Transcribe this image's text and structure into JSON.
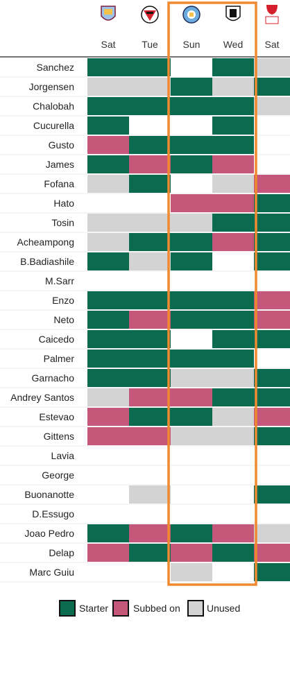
{
  "chart_data": {
    "type": "heatmap",
    "fixtures": [
      {
        "day": "Sat",
        "opponent_icon": "aston-villa-crest-icon"
      },
      {
        "day": "Tue",
        "opponent_icon": "bournemouth-crest-icon"
      },
      {
        "day": "Sun",
        "opponent_icon": "manchester-city-crest-icon"
      },
      {
        "day": "Wed",
        "opponent_icon": "fulham-crest-icon"
      },
      {
        "day": "Sat",
        "opponent_icon": "fa-cup-logo-icon"
      }
    ],
    "highlighted_fixtures": [
      2,
      3
    ],
    "colors": {
      "starter": "#0b6b4f",
      "subbed_on": "#c4577a",
      "unused": "#d3d3d3",
      "none": "#ffffff",
      "highlight": "#f08a30"
    },
    "legend": [
      {
        "key": "starter",
        "label": "Starter"
      },
      {
        "key": "subbed_on",
        "label": "Subbed on"
      },
      {
        "key": "unused",
        "label": "Unused"
      }
    ],
    "players": [
      {
        "name": "Sanchez",
        "status": [
          "starter",
          "starter",
          "none",
          "starter",
          "unused"
        ]
      },
      {
        "name": "Jorgensen",
        "status": [
          "unused",
          "unused",
          "starter",
          "unused",
          "starter"
        ]
      },
      {
        "name": "Chalobah",
        "status": [
          "starter",
          "starter",
          "starter",
          "starter",
          "unused"
        ]
      },
      {
        "name": "Cucurella",
        "status": [
          "starter",
          "none",
          "none",
          "starter",
          "none"
        ]
      },
      {
        "name": "Gusto",
        "status": [
          "subbed_on",
          "starter",
          "starter",
          "starter",
          "none"
        ]
      },
      {
        "name": "James",
        "status": [
          "starter",
          "subbed_on",
          "starter",
          "subbed_on",
          "none"
        ]
      },
      {
        "name": "Fofana",
        "status": [
          "unused",
          "starter",
          "none",
          "unused",
          "subbed_on"
        ]
      },
      {
        "name": "Hato",
        "status": [
          "none",
          "none",
          "subbed_on",
          "subbed_on",
          "starter"
        ]
      },
      {
        "name": "Tosin",
        "status": [
          "unused",
          "unused",
          "unused",
          "starter",
          "starter"
        ]
      },
      {
        "name": "Acheampong",
        "status": [
          "unused",
          "starter",
          "starter",
          "subbed_on",
          "starter"
        ]
      },
      {
        "name": "B.Badiashile",
        "status": [
          "starter",
          "unused",
          "starter",
          "none",
          "starter"
        ]
      },
      {
        "name": "M.Sarr",
        "status": [
          "none",
          "none",
          "none",
          "none",
          "none"
        ]
      },
      {
        "name": "Enzo",
        "status": [
          "starter",
          "starter",
          "starter",
          "starter",
          "subbed_on"
        ]
      },
      {
        "name": "Neto",
        "status": [
          "starter",
          "subbed_on",
          "starter",
          "starter",
          "subbed_on"
        ]
      },
      {
        "name": "Caicedo",
        "status": [
          "starter",
          "starter",
          "none",
          "starter",
          "starter"
        ]
      },
      {
        "name": "Palmer",
        "status": [
          "starter",
          "starter",
          "starter",
          "starter",
          "none"
        ]
      },
      {
        "name": "Garnacho",
        "status": [
          "starter",
          "starter",
          "unused",
          "unused",
          "starter"
        ]
      },
      {
        "name": "Andrey Santos",
        "status": [
          "unused",
          "subbed_on",
          "subbed_on",
          "starter",
          "starter"
        ]
      },
      {
        "name": "Estevao",
        "status": [
          "subbed_on",
          "starter",
          "starter",
          "unused",
          "subbed_on"
        ]
      },
      {
        "name": "Gittens",
        "status": [
          "subbed_on",
          "subbed_on",
          "unused",
          "unused",
          "starter"
        ]
      },
      {
        "name": "Lavia",
        "status": [
          "none",
          "none",
          "none",
          "none",
          "none"
        ]
      },
      {
        "name": "George",
        "status": [
          "none",
          "none",
          "none",
          "none",
          "none"
        ]
      },
      {
        "name": "Buonanotte",
        "status": [
          "none",
          "unused",
          "none",
          "none",
          "starter"
        ]
      },
      {
        "name": "D.Essugo",
        "status": [
          "none",
          "none",
          "none",
          "none",
          "none"
        ]
      },
      {
        "name": "Joao Pedro",
        "status": [
          "starter",
          "subbed_on",
          "starter",
          "subbed_on",
          "unused"
        ]
      },
      {
        "name": "Delap",
        "status": [
          "subbed_on",
          "starter",
          "subbed_on",
          "starter",
          "subbed_on"
        ]
      },
      {
        "name": "Marc Guiu",
        "status": [
          "none",
          "none",
          "unused",
          "none",
          "starter"
        ]
      }
    ]
  }
}
